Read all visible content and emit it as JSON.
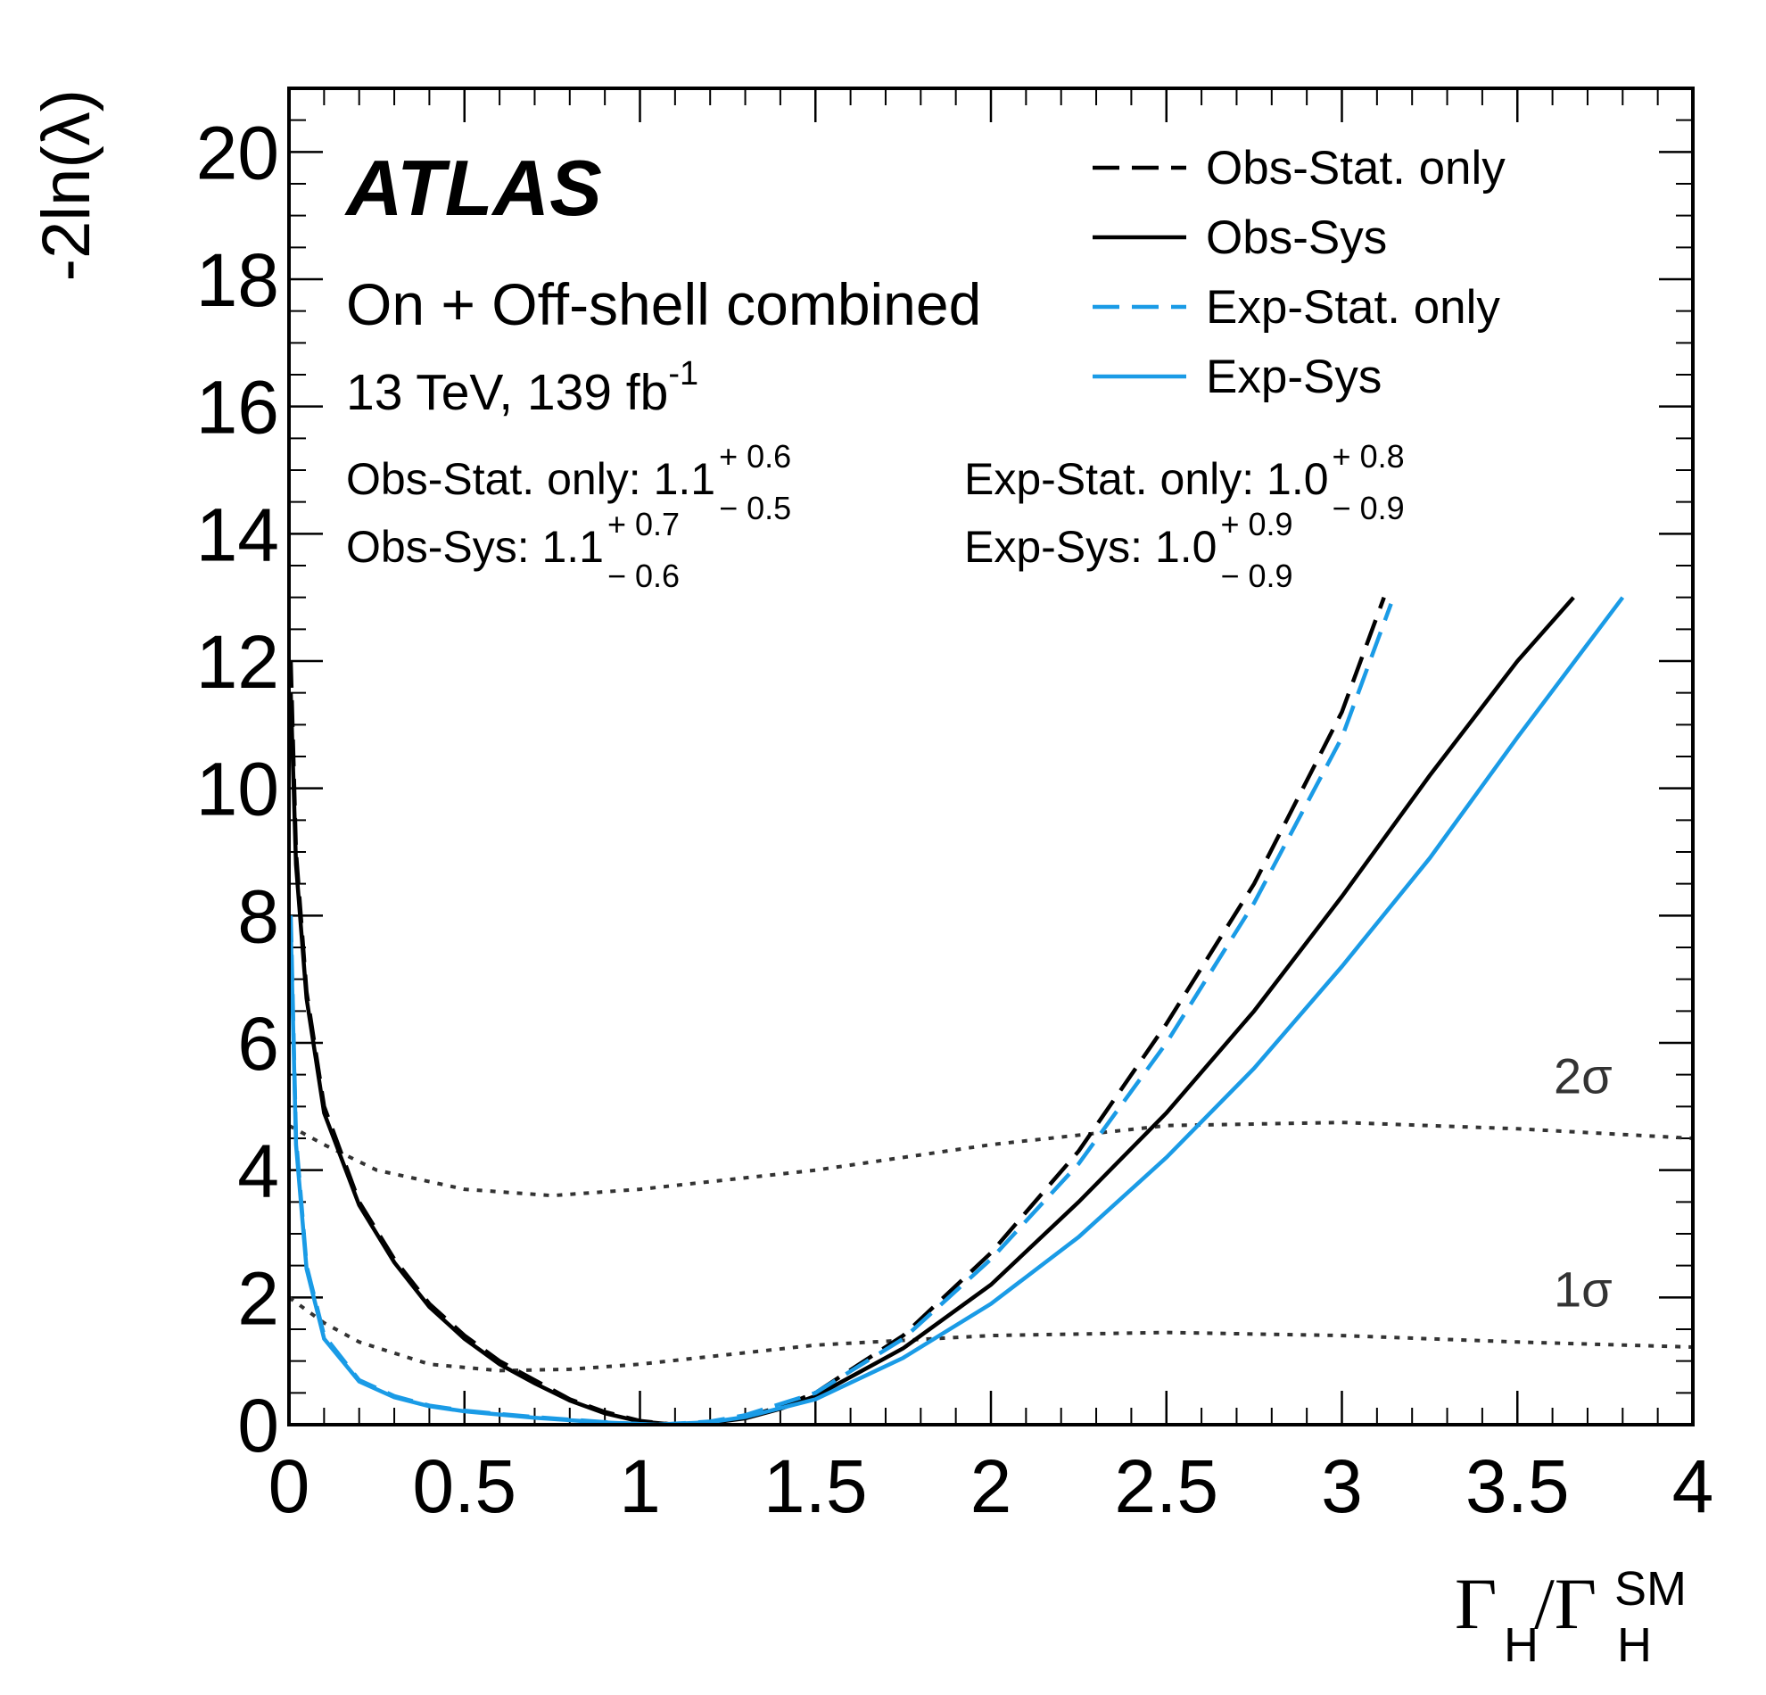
{
  "chart_data": {
    "type": "line",
    "title": "ATLAS",
    "subtitle": "On + Off-shell combined",
    "energy": "13 TeV, 139 fb",
    "energy_sup": "-1",
    "y_label": "-2ln(λ)",
    "x_label": {
      "gamma1": "Γ",
      "sub1": "H",
      "gamma2": "/Γ",
      "sub2": "H",
      "sup2": "SM"
    },
    "annotations": [
      {
        "text": "Obs-Stat. only: 1.1",
        "plus": "+ 0.6",
        "minus": "− 0.5"
      },
      {
        "text": "Obs-Sys: 1.1",
        "plus": "+ 0.7",
        "minus": "− 0.6"
      },
      {
        "text": "Exp-Stat. only: 1.0",
        "plus": "+ 0.8",
        "minus": "− 0.9"
      },
      {
        "text": "Exp-Sys: 1.0",
        "plus": "+ 0.9",
        "minus": "− 0.9"
      }
    ],
    "xlim": [
      0,
      4
    ],
    "ylim": [
      0,
      21
    ],
    "xticks": [
      0,
      0.5,
      1,
      1.5,
      2,
      2.5,
      3,
      3.5,
      4
    ],
    "yticks": [
      0,
      2,
      4,
      6,
      8,
      10,
      12,
      14,
      16,
      18,
      20
    ],
    "legend": "top-right",
    "series": [
      {
        "name": "Obs-Stat. only",
        "color": "#000000",
        "dashed": true,
        "x": [
          0.005,
          0.02,
          0.05,
          0.1,
          0.2,
          0.3,
          0.4,
          0.5,
          0.6,
          0.7,
          0.8,
          0.9,
          1.0,
          1.1,
          1.2,
          1.3,
          1.4,
          1.5,
          1.75,
          2.0,
          2.25,
          2.5,
          2.75,
          3.0,
          3.12
        ],
        "values": [
          12,
          9,
          6.8,
          5.0,
          3.5,
          2.6,
          1.9,
          1.4,
          1.0,
          0.7,
          0.4,
          0.2,
          0.06,
          0,
          0.03,
          0.12,
          0.28,
          0.5,
          1.4,
          2.7,
          4.3,
          6.3,
          8.5,
          11.2,
          13
        ]
      },
      {
        "name": "Obs-Sys",
        "color": "#000000",
        "dashed": false,
        "x": [
          0.005,
          0.02,
          0.05,
          0.1,
          0.2,
          0.3,
          0.4,
          0.5,
          0.6,
          0.7,
          0.8,
          0.9,
          1.0,
          1.1,
          1.2,
          1.3,
          1.4,
          1.5,
          1.75,
          2.0,
          2.25,
          2.5,
          2.75,
          3.0,
          3.25,
          3.5,
          3.66
        ],
        "values": [
          11.5,
          8.8,
          6.7,
          4.9,
          3.45,
          2.55,
          1.85,
          1.35,
          0.95,
          0.65,
          0.38,
          0.18,
          0.05,
          0,
          0.03,
          0.1,
          0.25,
          0.45,
          1.2,
          2.2,
          3.5,
          4.9,
          6.5,
          8.3,
          10.2,
          12.0,
          13
        ]
      },
      {
        "name": "Exp-Stat. only",
        "color": "#1a9be6",
        "dashed": true,
        "x": [
          0.005,
          0.02,
          0.05,
          0.1,
          0.2,
          0.3,
          0.4,
          0.5,
          0.6,
          0.7,
          0.8,
          0.9,
          1.0,
          1.05,
          1.2,
          1.3,
          1.5,
          1.75,
          2.0,
          2.25,
          2.5,
          2.75,
          3.0,
          3.14
        ],
        "values": [
          8,
          4.5,
          2.5,
          1.4,
          0.7,
          0.45,
          0.3,
          0.22,
          0.17,
          0.12,
          0.08,
          0.04,
          0.01,
          0,
          0.05,
          0.15,
          0.5,
          1.35,
          2.6,
          4.1,
          6.0,
          8.2,
          10.8,
          12.9
        ]
      },
      {
        "name": "Exp-Sys",
        "color": "#1a9be6",
        "dashed": false,
        "x": [
          0.005,
          0.02,
          0.05,
          0.1,
          0.2,
          0.3,
          0.4,
          0.5,
          0.6,
          0.7,
          0.8,
          0.9,
          1.0,
          1.05,
          1.2,
          1.3,
          1.5,
          1.75,
          2.0,
          2.25,
          2.5,
          2.75,
          3.0,
          3.25,
          3.5,
          3.8
        ],
        "values": [
          7.8,
          4.4,
          2.45,
          1.35,
          0.68,
          0.43,
          0.29,
          0.21,
          0.16,
          0.11,
          0.07,
          0.035,
          0.01,
          0,
          0.04,
          0.12,
          0.4,
          1.05,
          1.9,
          2.95,
          4.2,
          5.6,
          7.2,
          8.9,
          10.8,
          13
        ]
      }
    ],
    "bands": [
      {
        "name": "1σ",
        "color": "#333333",
        "x": [
          0,
          0.1,
          0.2,
          0.4,
          0.6,
          0.8,
          1.0,
          1.25,
          1.5,
          2.0,
          2.5,
          3.0,
          3.5,
          4.0
        ],
        "values": [
          2.0,
          1.6,
          1.3,
          0.95,
          0.85,
          0.87,
          0.95,
          1.1,
          1.25,
          1.4,
          1.45,
          1.4,
          1.3,
          1.22
        ]
      },
      {
        "name": "2σ",
        "color": "#333333",
        "x": [
          0,
          0.1,
          0.25,
          0.5,
          0.75,
          1.0,
          1.5,
          2.0,
          2.5,
          3.0,
          3.5,
          4.0
        ],
        "values": [
          4.7,
          4.4,
          4.0,
          3.7,
          3.6,
          3.7,
          4.0,
          4.4,
          4.7,
          4.75,
          4.65,
          4.5
        ]
      }
    ]
  }
}
